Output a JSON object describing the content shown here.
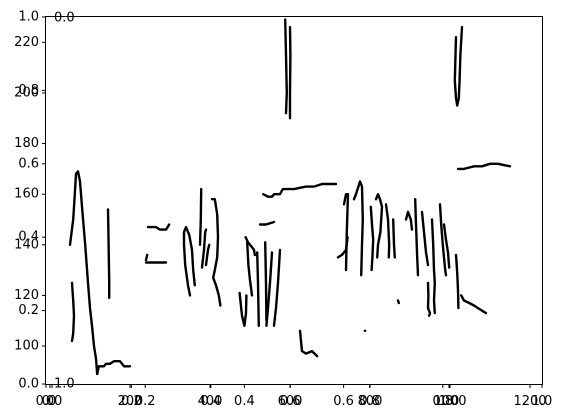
{
  "chart_data": {
    "type": "line",
    "title": "",
    "xlabel": "",
    "ylabel": "",
    "grid": false,
    "legend": "none",
    "colors": {
      "stroke": "#000000",
      "background": "#ffffff",
      "frame": "#000000"
    },
    "axes": [
      {
        "id": "main",
        "xlim": [
          -10,
          1230
        ],
        "ylim": [
          85,
          230
        ],
        "xticks": [
          "0",
          "200",
          "400",
          "600",
          "800",
          "1000",
          "1200"
        ],
        "xtick_values": [
          0,
          200,
          400,
          600,
          800,
          1000,
          1200
        ],
        "yticks": [
          "100",
          "120",
          "140",
          "160",
          "180",
          "200",
          "220"
        ],
        "ytick_values": [
          100,
          120,
          140,
          160,
          180,
          200,
          220
        ]
      },
      {
        "id": "overlay-outer",
        "xlim": [
          0,
          1
        ],
        "ylim": [
          0,
          1
        ],
        "xticks": [
          "0.0",
          "0.2",
          "0.4",
          "0.6",
          "0.8",
          "1.0"
        ],
        "yticks": [
          "0.0",
          "0.2",
          "0.4",
          "0.6",
          "0.8",
          "1.0"
        ]
      },
      {
        "id": "overlay-inner",
        "xlim": [
          0,
          1
        ],
        "ylim": [
          0,
          1
        ],
        "xticks": [
          "0.0",
          "0.2",
          "0.4",
          "0.6",
          "0.8",
          "1.0"
        ],
        "yticks": []
      }
    ],
    "series": [
      {
        "points": [
          [
            50,
            140
          ],
          [
            58,
            150
          ],
          [
            62,
            160
          ],
          [
            65,
            168
          ],
          [
            70,
            169
          ],
          [
            75,
            165
          ],
          [
            80,
            155
          ],
          [
            88,
            140
          ],
          [
            95,
            125
          ],
          [
            100,
            115
          ],
          [
            105,
            108
          ],
          [
            110,
            100
          ],
          [
            115,
            95
          ],
          [
            118,
            89
          ]
        ]
      },
      {
        "points": [
          [
            55,
            102
          ],
          [
            58,
            105
          ],
          [
            60,
            112
          ],
          [
            58,
            118
          ],
          [
            55,
            125
          ]
        ]
      },
      {
        "points": [
          [
            118,
            89
          ],
          [
            122,
            92
          ],
          [
            135,
            92
          ],
          [
            140,
            93
          ],
          [
            150,
            93
          ],
          [
            160,
            94
          ],
          [
            175,
            94
          ],
          [
            185,
            92
          ],
          [
            200,
            92
          ]
        ]
      },
      {
        "points": [
          [
            145,
            154
          ],
          [
            146,
            145
          ],
          [
            147,
            135
          ],
          [
            148,
            126
          ],
          [
            148,
            119
          ]
        ]
      },
      {
        "points": [
          [
            240,
            133
          ],
          [
            265,
            133
          ],
          [
            290,
            133
          ]
        ]
      },
      {
        "points": [
          [
            240,
            134
          ],
          [
            243,
            136
          ]
        ]
      },
      {
        "points": [
          [
            245,
            147
          ],
          [
            265,
            147
          ],
          [
            275,
            146
          ],
          [
            290,
            146
          ],
          [
            298,
            148
          ]
        ]
      },
      {
        "points": [
          [
            350,
            120
          ],
          [
            345,
            124
          ],
          [
            338,
            132
          ],
          [
            335,
            140
          ],
          [
            335,
            145
          ],
          [
            340,
            147
          ],
          [
            348,
            144
          ],
          [
            355,
            138
          ],
          [
            358,
            130
          ],
          [
            362,
            124
          ]
        ]
      },
      {
        "points": [
          [
            375,
            140
          ],
          [
            377,
            150
          ],
          [
            378,
            162
          ]
        ]
      },
      {
        "points": [
          [
            380,
            131
          ],
          [
            385,
            138
          ],
          [
            388,
            145
          ],
          [
            390,
            146
          ]
        ]
      },
      {
        "points": [
          [
            390,
            132
          ],
          [
            395,
            138
          ],
          [
            398,
            140
          ]
        ]
      },
      {
        "points": [
          [
            405,
            158
          ],
          [
            412,
            158
          ],
          [
            418,
            152
          ],
          [
            420,
            143
          ],
          [
            418,
            135
          ],
          [
            412,
            130
          ],
          [
            408,
            127
          ]
        ]
      },
      {
        "points": [
          [
            408,
            127
          ],
          [
            415,
            124
          ],
          [
            422,
            120
          ],
          [
            426,
            116
          ]
        ]
      },
      {
        "points": [
          [
            525,
            148
          ],
          [
            540,
            148
          ],
          [
            560,
            149
          ]
        ]
      },
      {
        "points": [
          [
            533,
            160
          ],
          [
            545,
            159
          ],
          [
            555,
            159
          ],
          [
            560,
            160
          ],
          [
            570,
            160
          ],
          [
            575,
            160
          ],
          [
            582,
            162
          ],
          [
            595,
            162
          ],
          [
            610,
            162
          ],
          [
            640,
            163
          ],
          [
            660,
            163
          ],
          [
            680,
            164
          ],
          [
            715,
            164
          ]
        ]
      },
      {
        "points": [
          [
            588,
            229
          ],
          [
            590,
            215
          ],
          [
            592,
            200
          ],
          [
            590,
            192
          ]
        ]
      },
      {
        "points": [
          [
            600,
            226
          ],
          [
            601,
            215
          ],
          [
            600,
            200
          ],
          [
            600,
            190
          ]
        ]
      },
      {
        "points": [
          [
            474,
            121
          ],
          [
            480,
            112
          ],
          [
            486,
            108
          ],
          [
            490,
            113
          ],
          [
            491,
            120
          ]
        ]
      },
      {
        "points": [
          [
            489,
            143
          ],
          [
            495,
            141
          ],
          [
            500,
            140
          ],
          [
            505,
            139
          ],
          [
            510,
            138
          ],
          [
            512,
            136
          ],
          [
            515,
            136
          ]
        ]
      },
      {
        "points": [
          [
            493,
            141
          ],
          [
            496,
            132
          ],
          [
            500,
            126
          ],
          [
            505,
            120
          ]
        ]
      },
      {
        "points": [
          [
            518,
            137
          ],
          [
            520,
            125
          ],
          [
            522,
            108
          ]
        ]
      },
      {
        "points": [
          [
            538,
            141
          ],
          [
            540,
            125
          ],
          [
            541,
            110
          ]
        ]
      },
      {
        "points": [
          [
            555,
            137
          ],
          [
            550,
            125
          ],
          [
            545,
            115
          ],
          [
            541,
            108
          ]
        ]
      },
      {
        "points": [
          [
            575,
            138
          ],
          [
            570,
            125
          ],
          [
            565,
            115
          ],
          [
            560,
            108
          ]
        ]
      },
      {
        "points": [
          [
            625,
            106
          ],
          [
            630,
            98
          ],
          [
            640,
            97
          ],
          [
            655,
            98
          ],
          [
            668,
            96
          ]
        ]
      },
      {
        "points": [
          [
            720,
            135
          ],
          [
            730,
            136
          ],
          [
            740,
            138
          ],
          [
            744,
            143
          ]
        ]
      },
      {
        "points": [
          [
            735,
            156
          ],
          [
            740,
            160
          ],
          [
            745,
            160
          ],
          [
            742,
            145
          ],
          [
            740,
            130
          ]
        ]
      },
      {
        "points": [
          [
            760,
            158
          ],
          [
            765,
            160
          ],
          [
            775,
            165
          ],
          [
            780,
            163
          ],
          [
            782,
            150
          ],
          [
            780,
            140
          ],
          [
            778,
            128
          ]
        ]
      },
      {
        "points": [
          [
            787,
            106
          ],
          [
            788,
            106
          ]
        ]
      },
      {
        "points": [
          [
            802,
            155
          ],
          [
            805,
            148
          ],
          [
            808,
            142
          ],
          [
            806,
            135
          ],
          [
            804,
            130
          ]
        ]
      },
      {
        "points": [
          [
            815,
            158
          ],
          [
            820,
            160
          ],
          [
            825,
            158
          ],
          [
            830,
            155
          ],
          [
            826,
            145
          ],
          [
            820,
            140
          ],
          [
            818,
            135
          ]
        ]
      },
      {
        "points": [
          [
            840,
            156
          ],
          [
            845,
            150
          ],
          [
            848,
            140
          ],
          [
            847,
            135
          ]
        ]
      },
      {
        "points": [
          [
            858,
            150
          ],
          [
            860,
            140
          ],
          [
            862,
            135
          ]
        ]
      },
      {
        "points": [
          [
            870,
            118
          ],
          [
            872,
            117
          ]
        ]
      },
      {
        "points": [
          [
            890,
            150
          ],
          [
            895,
            153
          ],
          [
            902,
            150
          ],
          [
            905,
            146
          ]
        ]
      },
      {
        "points": [
          [
            913,
            158
          ],
          [
            915,
            148
          ],
          [
            918,
            135
          ],
          [
            920,
            128
          ]
        ]
      },
      {
        "points": [
          [
            930,
            153
          ],
          [
            935,
            145
          ],
          [
            940,
            137
          ],
          [
            945,
            132
          ]
        ]
      },
      {
        "points": [
          [
            945,
            125
          ],
          [
            946,
            120
          ],
          [
            945,
            115
          ],
          [
            950,
            113
          ],
          [
            948,
            112
          ]
        ]
      },
      {
        "points": [
          [
            955,
            150
          ],
          [
            958,
            140
          ],
          [
            960,
            130
          ],
          [
            962,
            125
          ],
          [
            960,
            118
          ],
          [
            962,
            113
          ]
        ]
      },
      {
        "points": [
          [
            975,
            156
          ],
          [
            978,
            148
          ],
          [
            982,
            140
          ],
          [
            988,
            130
          ],
          [
            990,
            128
          ]
        ]
      },
      {
        "points": [
          [
            985,
            148
          ],
          [
            990,
            142
          ],
          [
            995,
            137
          ],
          [
            998,
            131
          ]
        ]
      },
      {
        "points": [
          [
            1015,
            136
          ],
          [
            1018,
            129
          ],
          [
            1020,
            122
          ],
          [
            1021,
            115
          ]
        ]
      },
      {
        "points": [
          [
            1028,
            120
          ],
          [
            1035,
            118
          ],
          [
            1048,
            117
          ],
          [
            1060,
            116
          ],
          [
            1070,
            115
          ],
          [
            1080,
            114
          ],
          [
            1090,
            113
          ]
        ]
      },
      {
        "points": [
          [
            1015,
            222
          ],
          [
            1012,
            205
          ],
          [
            1015,
            198
          ],
          [
            1018,
            195
          ],
          [
            1022,
            198
          ],
          [
            1024,
            205
          ],
          [
            1026,
            215
          ],
          [
            1030,
            226
          ]
        ]
      },
      {
        "points": [
          [
            1020,
            170
          ],
          [
            1035,
            170
          ],
          [
            1060,
            171
          ],
          [
            1080,
            171
          ],
          [
            1100,
            172
          ],
          [
            1120,
            172
          ],
          [
            1150,
            171
          ]
        ]
      }
    ]
  }
}
